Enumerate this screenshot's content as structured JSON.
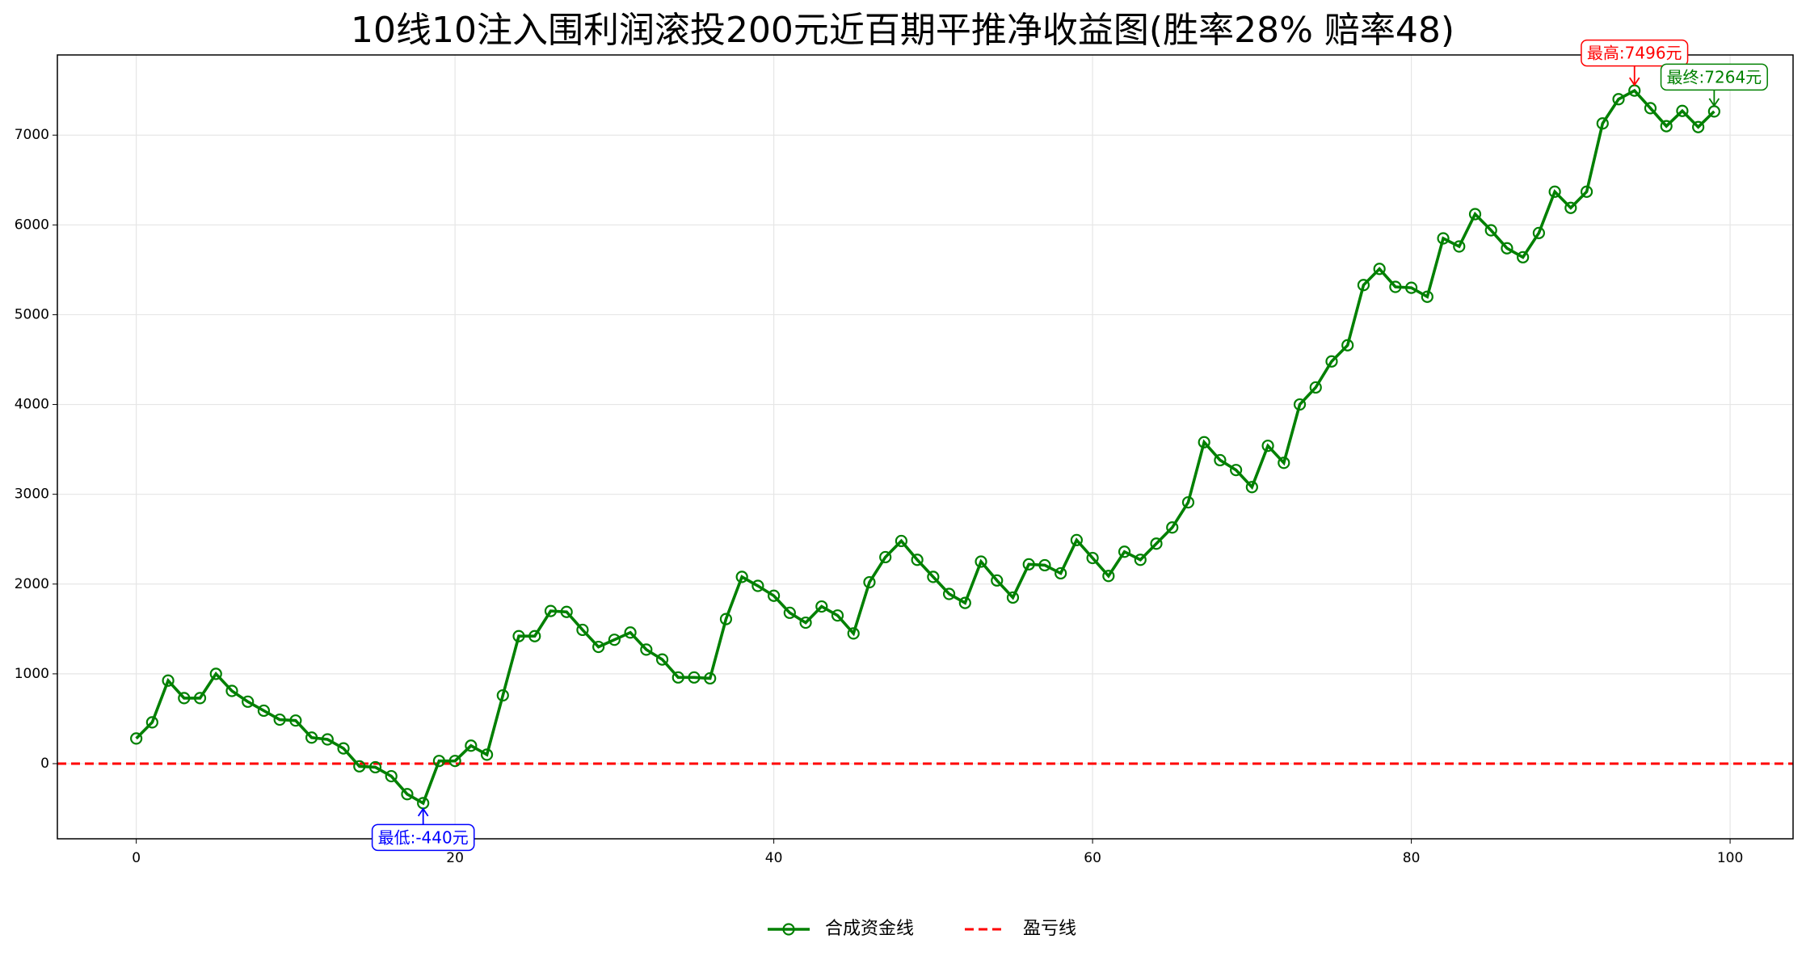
{
  "chart_data": {
    "type": "line",
    "title": "10线10注入围利润滚投200元近百期平推净收益图(胜率28% 赔率48)",
    "x": [
      0,
      1,
      2,
      3,
      4,
      5,
      6,
      7,
      8,
      9,
      10,
      11,
      12,
      13,
      14,
      15,
      16,
      17,
      18,
      19,
      20,
      21,
      22,
      23,
      24,
      25,
      26,
      27,
      28,
      29,
      30,
      31,
      32,
      33,
      34,
      35,
      36,
      37,
      38,
      39,
      40,
      41,
      42,
      43,
      44,
      45,
      46,
      47,
      48,
      49,
      50,
      51,
      52,
      53,
      54,
      55,
      56,
      57,
      58,
      59,
      60,
      61,
      62,
      63,
      64,
      65,
      66,
      67,
      68,
      69,
      70,
      71,
      72,
      73,
      74,
      75,
      76,
      77,
      78,
      79,
      80,
      81,
      82,
      83,
      84,
      85,
      86,
      87,
      88,
      89,
      90,
      91,
      92,
      93,
      94,
      95,
      96,
      97,
      98,
      99
    ],
    "series": [
      {
        "name": "合成资金线",
        "color": "#008000",
        "values": [
          280,
          460,
          925,
          730,
          730,
          1000,
          810,
          690,
          590,
          490,
          480,
          290,
          270,
          170,
          -30,
          -40,
          -140,
          -340,
          -440,
          30,
          30,
          200,
          100,
          760,
          1420,
          1420,
          1700,
          1690,
          1490,
          1300,
          1380,
          1460,
          1270,
          1160,
          960,
          960,
          950,
          1610,
          2080,
          1980,
          1870,
          1680,
          1570,
          1750,
          1650,
          1450,
          2020,
          2300,
          2480,
          2270,
          2080,
          1890,
          1790,
          2250,
          2040,
          1850,
          2220,
          2210,
          2120,
          2490,
          2290,
          2090,
          2360,
          2270,
          2450,
          2630,
          2910,
          3580,
          3380,
          3270,
          3080,
          3540,
          3350,
          4000,
          4190,
          4480,
          4660,
          5330,
          5510,
          5310,
          5300,
          5200,
          5850,
          5760,
          6120,
          5940,
          5740,
          5640,
          5910,
          6370,
          6190,
          6370,
          7130,
          7400,
          7496,
          7300,
          7100,
          7270,
          7090,
          7264
        ]
      }
    ],
    "hline": {
      "name": "盈亏线",
      "value": 0,
      "color": "#ff0000"
    },
    "max_label": {
      "text": "最高:7496元",
      "color": "#ff0000"
    },
    "min_label": {
      "text": "最低:-440元",
      "color": "#0000ff"
    },
    "final_label": {
      "text": "最终:7264元",
      "color": "#008000"
    },
    "xlim": [
      -4.95,
      103.95
    ],
    "ylim": [
      -837,
      7893
    ],
    "xticks": [
      0,
      20,
      40,
      60,
      80,
      100
    ],
    "yticks": [
      0,
      1000,
      2000,
      3000,
      4000,
      5000,
      6000,
      7000
    ],
    "grid": true
  }
}
